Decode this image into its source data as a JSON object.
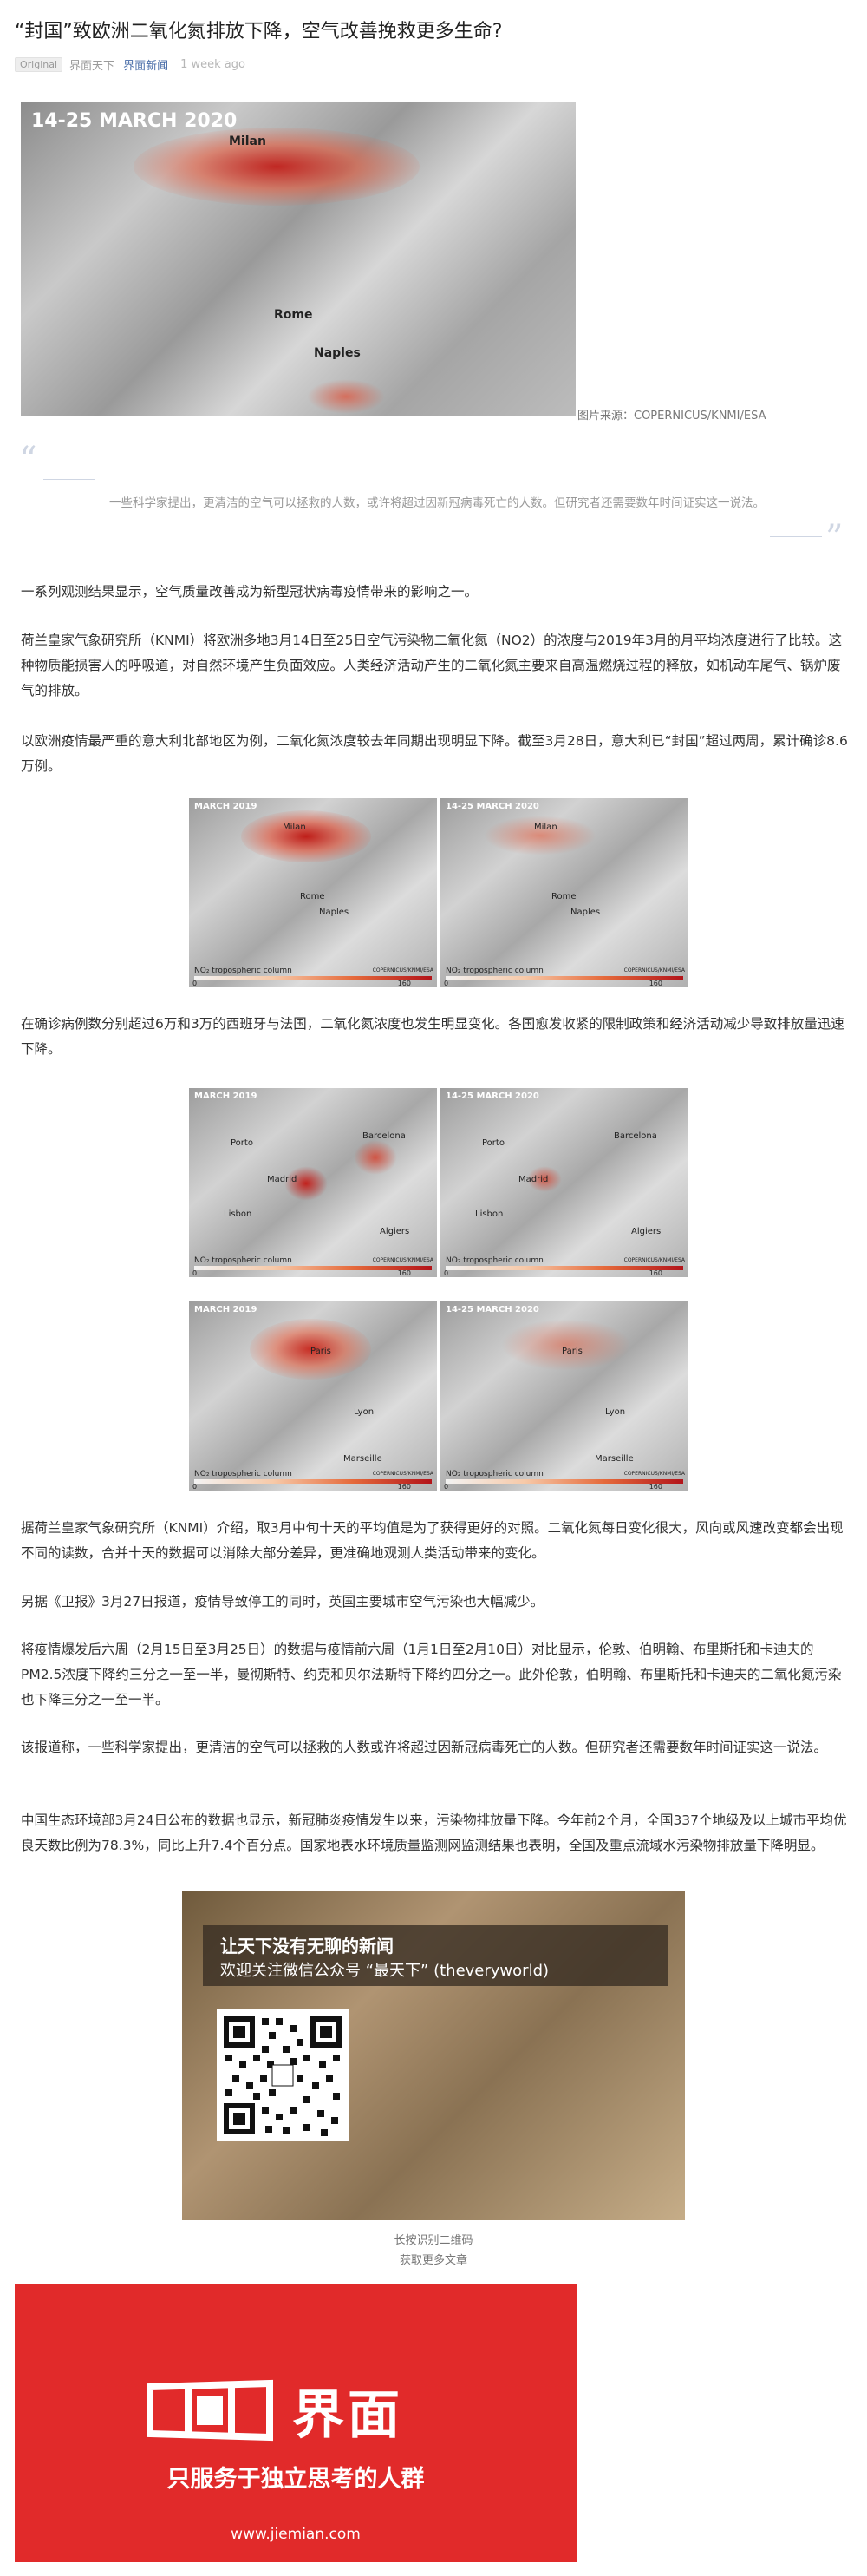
{
  "article": {
    "title": "“封国”致欧洲二氧化氮排放下降，空气改善挽救更多生命?",
    "original_badge": "Original",
    "author": "界面天下",
    "account": "界面新闻",
    "time": "1 week ago"
  },
  "hero_map": {
    "date_label": "14-25 MARCH 2020",
    "cities": [
      "Milan",
      "Rome",
      "Naples"
    ],
    "source_caption": "图片来源：COPERNICUS/KNMI/ESA"
  },
  "pull_quote": "一些科学家提出，更清洁的空气可以拯救的人数，或许将超过因新冠病毒死亡的人数。但研究者还需要数年时间证实这一说法。",
  "paragraphs": {
    "p1": "一系列观测结果显示，空气质量改善成为新型冠状病毒疫情带来的影响之一。",
    "p2": "荷兰皇家气象研究所（KNMI）将欧洲多地3月14日至25日空气污染物二氧化氮（NO2）的浓度与2019年3月的月平均浓度进行了比较。这种物质能损害人的呼吸道，对自然环境产生负面效应。人类经济活动产生的二氧化氮主要来自高温燃烧过程的释放，如机动车尾气、锅炉废气的排放。",
    "p3": "以欧洲疫情最严重的意大利北部地区为例，二氧化氮浓度较去年同期出现明显下降。截至3月28日，意大利已“封国”超过两周，累计确诊8.6万例。",
    "p4": "在确诊病例数分别超过6万和3万的西班牙与法国，二氧化氮浓度也发生明显变化。各国愈发收紧的限制政策和经济活动减少导致排放量迅速下降。",
    "p5": "据荷兰皇家气象研究所（KNMI）介绍，取3月中旬十天的平均值是为了获得更好的对照。二氧化氮每日变化很大，风向或风速改变都会出现不同的读数，合并十天的数据可以消除大部分差异，更准确地观测人类活动带来的变化。",
    "p6": "另据《卫报》3月27日报道，疫情导致停工的同时，英国主要城市空气污染也大幅减少。",
    "p7": "将疫情爆发后六周（2月15日至3月25日）的数据与疫情前六周（1月1日至2月10日）对比显示，伦敦、伯明翰、布里斯托和卡迪夫的PM2.5浓度下降约三分之一至一半，曼彻斯特、约克和贝尔法斯特下降约四分之一。此外伦敦，伯明翰、布里斯托和卡迪夫的二氧化氮污染也下降三分之一至一半。",
    "p8": "该报道称，一些科学家提出，更清洁的空气可以拯救的人数或许将超过因新冠病毒死亡的人数。但研究者还需要数年时间证实这一说法。",
    "p9": "中国生态环境部3月24日公布的数据也显示，新冠肺炎疫情发生以来，污染物排放量下降。今年前2个月，全国337个地级及以上城市平均优良天数比例为78.3%，同比上升7.4个百分点。国家地表水环境质量监测网监测结果也表明，全国及重点流域水污染物排放量下降明显。"
  },
  "map_panels": {
    "before": "MARCH 2019",
    "after": "14-25 MARCH 2020",
    "legend": "NO₂ tropospheric column",
    "tick_min": "0",
    "tick_max": "160",
    "credit": "COPERNICUS/KNMI/ESA",
    "italy_cities": [
      "Milan",
      "Rome",
      "Naples"
    ],
    "spain_cities": [
      "Porto",
      "Barcelona",
      "Madrid",
      "Lisbon",
      "Algiers"
    ],
    "france_cities": [
      "Paris",
      "Lyon",
      "Marseille"
    ]
  },
  "promo": {
    "line1": "让天下没有无聊的新闻",
    "line2": "欢迎关注微信公众号 “最天下” (theveryworld)",
    "qr_caption1": "长按识别二维码",
    "qr_caption2": "获取更多文章"
  },
  "ad": {
    "brand": "界面",
    "slogan": "只服务于独立思考的人群",
    "url": "www.jiemian.com",
    "brand_color": "#e12a2a"
  }
}
